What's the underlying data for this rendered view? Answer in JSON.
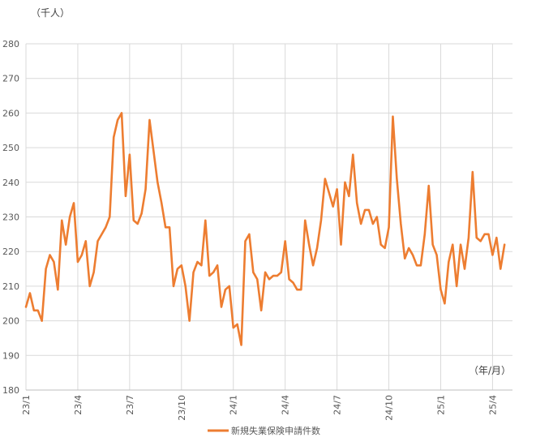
{
  "chart_data": {
    "type": "line",
    "y_unit_label": "（千人）",
    "x_unit_label": "（年/月）",
    "ylim": [
      180,
      280
    ],
    "yticks": [
      180,
      190,
      200,
      210,
      220,
      230,
      240,
      250,
      260,
      270,
      280
    ],
    "xticks": [
      {
        "label": "23/1",
        "week": 0
      },
      {
        "label": "23/4",
        "week": 13
      },
      {
        "label": "23/7",
        "week": 26
      },
      {
        "label": "23/10",
        "week": 39
      },
      {
        "label": "24/1",
        "week": 52
      },
      {
        "label": "24/4",
        "week": 65
      },
      {
        "label": "24/7",
        "week": 78
      },
      {
        "label": "24/10",
        "week": 91
      },
      {
        "label": "25/1",
        "week": 104
      },
      {
        "label": "25/4",
        "week": 117
      }
    ],
    "grid": true,
    "legend_position": "bottom",
    "color": "#ED7D31",
    "series": [
      {
        "name": "新規失業保険申請件数",
        "values": [
          204,
          208,
          203,
          203,
          200,
          215,
          219,
          217,
          209,
          229,
          222,
          230,
          234,
          217,
          219,
          223,
          210,
          214,
          223,
          225,
          227,
          230,
          253,
          258,
          260,
          236,
          248,
          229,
          228,
          231,
          238,
          258,
          249,
          240,
          234,
          227,
          227,
          210,
          215,
          216,
          210,
          200,
          214,
          217,
          216,
          229,
          213,
          214,
          216,
          204,
          209,
          210,
          198,
          199,
          193,
          223,
          225,
          214,
          212,
          203,
          214,
          212,
          213,
          213,
          214,
          223,
          212,
          211,
          209,
          209,
          229,
          222,
          216,
          221,
          229,
          241,
          237,
          233,
          238,
          222,
          240,
          236,
          248,
          234,
          228,
          232,
          232,
          228,
          230,
          222,
          221,
          227,
          259,
          241,
          228,
          218,
          221,
          219,
          216,
          216,
          225,
          239,
          222,
          219,
          209,
          205,
          217,
          222,
          210,
          222,
          215,
          224,
          243,
          224,
          223,
          225,
          225,
          219,
          224,
          215,
          222
        ]
      }
    ]
  }
}
